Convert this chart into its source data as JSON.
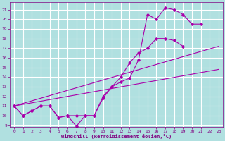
{
  "xlabel": "Windchill (Refroidissement éolien,°C)",
  "background_color": "#b0e0e0",
  "grid_color": "#ffffff",
  "line_color": "#aa00aa",
  "xlim": [
    -0.5,
    23.5
  ],
  "ylim": [
    8.8,
    21.8
  ],
  "xticks": [
    0,
    1,
    2,
    3,
    4,
    5,
    6,
    7,
    8,
    9,
    10,
    11,
    12,
    13,
    14,
    15,
    16,
    17,
    18,
    19,
    20,
    21,
    22,
    23
  ],
  "yticks": [
    9,
    10,
    11,
    12,
    13,
    14,
    15,
    16,
    17,
    18,
    19,
    20,
    21
  ],
  "lines": [
    {
      "x": [
        0,
        1,
        2,
        3,
        4,
        5,
        6,
        7,
        8,
        9,
        10,
        11,
        12,
        13,
        14,
        15,
        16,
        17,
        18,
        19,
        20,
        21
      ],
      "y": [
        11,
        10,
        10.5,
        11,
        11,
        9.8,
        10,
        8.9,
        10,
        10,
        11.8,
        13,
        13.5,
        13.9,
        15.8,
        20.5,
        20,
        21.2,
        21,
        20.5,
        19.5,
        19.5
      ]
    },
    {
      "x": [
        0,
        1,
        2,
        3,
        4,
        5,
        6,
        7,
        8,
        9,
        10,
        11,
        12,
        13,
        14,
        15,
        16,
        17,
        18,
        19
      ],
      "y": [
        11,
        10,
        10.5,
        11,
        11,
        9.8,
        10,
        10,
        10,
        10,
        12,
        13,
        14,
        15.5,
        16.5,
        17,
        18,
        18,
        17.8,
        17.2
      ]
    },
    {
      "x": [
        0,
        23
      ],
      "y": [
        11,
        14.8
      ]
    },
    {
      "x": [
        0,
        23
      ],
      "y": [
        11,
        17.2
      ]
    }
  ]
}
